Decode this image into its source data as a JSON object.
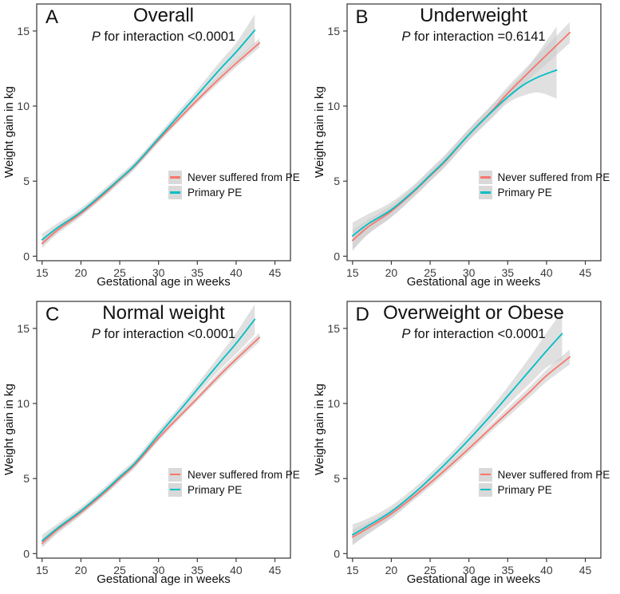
{
  "figure": {
    "background": "#ffffff"
  },
  "style": {
    "ci_color": "#cbcbcb",
    "ci_opacity": 0.6,
    "border_color": "#333333",
    "tick_color": "#3c3c3c",
    "red": "#F8766D",
    "teal": "#00BFC4",
    "legend_key_bg": "#D9D9D9"
  },
  "legend": {
    "entries": [
      {
        "label": "Never suffered from PE",
        "color": "#F8766D"
      },
      {
        "label": "Primary PE",
        "color": "#00BFC4"
      }
    ]
  },
  "chart_data": [
    {
      "type": "line",
      "panel_label": "A",
      "title": "Overall",
      "p_stat": "P",
      "p_rest": " for interaction <0.0001",
      "xlabel": "Gestational age in weeks",
      "ylabel": "Weight gain in kg",
      "x_ticks": [
        15,
        20,
        25,
        30,
        35,
        40,
        45
      ],
      "y_ticks": [
        0,
        5,
        10,
        15
      ],
      "xlim": [
        14.3,
        47.0
      ],
      "ylim": [
        -0.3,
        16.8
      ],
      "legend_position": "right-center",
      "grid": false,
      "series": [
        {
          "name": "Never suffered from PE",
          "color": "#F8766D",
          "points": [
            [
              15,
              0.85,
              0.55,
              1.15
            ],
            [
              17,
              1.75,
              1.5,
              2.0
            ],
            [
              20,
              2.85,
              2.65,
              3.05
            ],
            [
              23,
              4.15,
              3.95,
              4.35
            ],
            [
              25,
              5.1,
              4.9,
              5.3
            ],
            [
              27,
              6.05,
              5.85,
              6.25
            ],
            [
              30,
              7.75,
              7.55,
              7.95
            ],
            [
              33,
              9.35,
              9.15,
              9.55
            ],
            [
              35,
              10.4,
              10.2,
              10.6
            ],
            [
              38,
              11.9,
              11.65,
              12.15
            ],
            [
              40,
              12.85,
              12.6,
              13.1
            ],
            [
              43,
              14.2,
              13.9,
              14.5
            ]
          ]
        },
        {
          "name": "Primary PE",
          "color": "#00BFC4",
          "points": [
            [
              15,
              1.1,
              0.7,
              1.5
            ],
            [
              17,
              1.9,
              1.6,
              2.2
            ],
            [
              20,
              2.95,
              2.7,
              3.2
            ],
            [
              23,
              4.25,
              4.0,
              4.5
            ],
            [
              25,
              5.15,
              4.9,
              5.4
            ],
            [
              27,
              6.1,
              5.85,
              6.35
            ],
            [
              30,
              7.85,
              7.6,
              8.1
            ],
            [
              33,
              9.6,
              9.3,
              9.9
            ],
            [
              35,
              10.75,
              10.4,
              11.1
            ],
            [
              38,
              12.5,
              12.0,
              13.0
            ],
            [
              40,
              13.6,
              13.0,
              14.2
            ],
            [
              42.4,
              15.05,
              14.1,
              16.1
            ]
          ]
        }
      ]
    },
    {
      "type": "line",
      "panel_label": "B",
      "title": "Underweight",
      "p_stat": "P",
      "p_rest": " for interaction =0.6141",
      "xlabel": "Gestational age in weeks",
      "ylabel": "Weight gain in kg",
      "x_ticks": [
        15,
        20,
        25,
        30,
        35,
        40,
        45
      ],
      "y_ticks": [
        0,
        5,
        10,
        15
      ],
      "xlim": [
        14.3,
        47.0
      ],
      "ylim": [
        -0.3,
        16.8
      ],
      "legend_position": "right-center",
      "grid": false,
      "series": [
        {
          "name": "Never suffered from PE",
          "color": "#F8766D",
          "points": [
            [
              15,
              1.05,
              0.35,
              1.75
            ],
            [
              17,
              1.95,
              1.45,
              2.45
            ],
            [
              20,
              3.0,
              2.6,
              3.4
            ],
            [
              23,
              4.35,
              4.0,
              4.7
            ],
            [
              25,
              5.35,
              5.0,
              5.7
            ],
            [
              27,
              6.35,
              6.0,
              6.7
            ],
            [
              30,
              8.1,
              7.75,
              8.45
            ],
            [
              33,
              9.7,
              9.3,
              10.1
            ],
            [
              35,
              10.85,
              10.4,
              11.3
            ],
            [
              38,
              12.4,
              11.9,
              12.9
            ],
            [
              40,
              13.4,
              12.8,
              14.0
            ],
            [
              43,
              14.9,
              14.2,
              15.6
            ]
          ]
        },
        {
          "name": "Primary PE",
          "color": "#00BFC4",
          "points": [
            [
              15,
              1.35,
              0.45,
              2.25
            ],
            [
              17,
              2.15,
              1.5,
              2.8
            ],
            [
              20,
              3.1,
              2.6,
              3.6
            ],
            [
              23,
              4.4,
              4.0,
              4.8
            ],
            [
              25,
              5.4,
              5.0,
              5.8
            ],
            [
              27,
              6.4,
              6.0,
              6.8
            ],
            [
              30,
              8.1,
              7.7,
              8.5
            ],
            [
              33,
              9.65,
              9.2,
              10.1
            ],
            [
              35,
              10.6,
              10.2,
              11.1
            ],
            [
              37,
              11.4,
              10.7,
              12.2
            ],
            [
              39,
              11.95,
              10.9,
              13.6
            ],
            [
              41.3,
              12.4,
              10.5,
              15.3
            ]
          ]
        }
      ]
    },
    {
      "type": "line",
      "panel_label": "C",
      "title": "Normal weight",
      "p_stat": "P",
      "p_rest": " for interaction <0.0001",
      "xlabel": "Gestational age in weeks",
      "ylabel": "Weight gain in kg",
      "x_ticks": [
        15,
        20,
        25,
        30,
        35,
        40,
        45
      ],
      "y_ticks": [
        0,
        5,
        10,
        15
      ],
      "xlim": [
        14.3,
        47.0
      ],
      "ylim": [
        -0.3,
        16.8
      ],
      "legend_position": "right-center",
      "grid": false,
      "series": [
        {
          "name": "Never suffered from PE",
          "color": "#F8766D",
          "points": [
            [
              15,
              0.7,
              0.4,
              1.0
            ],
            [
              17,
              1.6,
              1.35,
              1.85
            ],
            [
              20,
              2.75,
              2.55,
              2.95
            ],
            [
              23,
              4.05,
              3.85,
              4.25
            ],
            [
              25,
              5.0,
              4.8,
              5.2
            ],
            [
              27,
              5.95,
              5.75,
              6.15
            ],
            [
              30,
              7.7,
              7.5,
              7.9
            ],
            [
              33,
              9.3,
              9.1,
              9.5
            ],
            [
              35,
              10.35,
              10.15,
              10.55
            ],
            [
              38,
              11.95,
              11.7,
              12.2
            ],
            [
              40,
              12.95,
              12.7,
              13.2
            ],
            [
              43,
              14.4,
              14.1,
              14.7
            ]
          ]
        },
        {
          "name": "Primary PE",
          "color": "#00BFC4",
          "points": [
            [
              15,
              0.85,
              0.45,
              1.25
            ],
            [
              17,
              1.7,
              1.4,
              2.0
            ],
            [
              20,
              2.85,
              2.6,
              3.1
            ],
            [
              23,
              4.15,
              3.9,
              4.4
            ],
            [
              25,
              5.1,
              4.85,
              5.35
            ],
            [
              27,
              6.05,
              5.8,
              6.3
            ],
            [
              30,
              7.9,
              7.6,
              8.2
            ],
            [
              33,
              9.7,
              9.4,
              10.0
            ],
            [
              35,
              10.95,
              10.6,
              11.3
            ],
            [
              38,
              12.8,
              12.3,
              13.3
            ],
            [
              40,
              14.0,
              13.3,
              14.7
            ],
            [
              42.4,
              15.6,
              14.6,
              16.6
            ]
          ]
        }
      ]
    },
    {
      "type": "line",
      "panel_label": "D",
      "title": "Overweight or Obese",
      "p_stat": "P",
      "p_rest": " for interaction <0.0001",
      "xlabel": "Gestational age in weeks",
      "ylabel": "Weight gain in kg",
      "x_ticks": [
        15,
        20,
        25,
        30,
        35,
        40,
        45
      ],
      "y_ticks": [
        0,
        5,
        10,
        15
      ],
      "xlim": [
        14.3,
        47.0
      ],
      "ylim": [
        -0.3,
        16.8
      ],
      "legend_position": "right-center",
      "grid": false,
      "series": [
        {
          "name": "Never suffered from PE",
          "color": "#F8766D",
          "points": [
            [
              15,
              1.1,
              0.6,
              1.6
            ],
            [
              17,
              1.7,
              1.3,
              2.1
            ],
            [
              20,
              2.65,
              2.35,
              2.95
            ],
            [
              23,
              3.85,
              3.6,
              4.1
            ],
            [
              25,
              4.7,
              4.45,
              4.95
            ],
            [
              27,
              5.6,
              5.35,
              5.85
            ],
            [
              30,
              7.0,
              6.75,
              7.25
            ],
            [
              33,
              8.45,
              8.2,
              8.7
            ],
            [
              35,
              9.4,
              9.1,
              9.7
            ],
            [
              38,
              10.85,
              10.5,
              11.2
            ],
            [
              40,
              11.85,
              11.45,
              12.25
            ],
            [
              43,
              13.1,
              12.6,
              13.6
            ]
          ]
        },
        {
          "name": "Primary PE",
          "color": "#00BFC4",
          "points": [
            [
              15,
              1.25,
              0.55,
              1.95
            ],
            [
              17,
              1.85,
              1.35,
              2.35
            ],
            [
              20,
              2.8,
              2.4,
              3.2
            ],
            [
              23,
              4.05,
              3.7,
              4.4
            ],
            [
              25,
              5.0,
              4.65,
              5.35
            ],
            [
              27,
              6.0,
              5.65,
              6.35
            ],
            [
              30,
              7.6,
              7.2,
              8.0
            ],
            [
              33,
              9.3,
              8.8,
              9.8
            ],
            [
              35,
              10.5,
              9.9,
              11.1
            ],
            [
              38,
              12.3,
              11.4,
              13.2
            ],
            [
              40,
              13.5,
              12.4,
              14.7
            ],
            [
              42,
              14.65,
              12.9,
              16.1
            ]
          ]
        }
      ]
    }
  ]
}
